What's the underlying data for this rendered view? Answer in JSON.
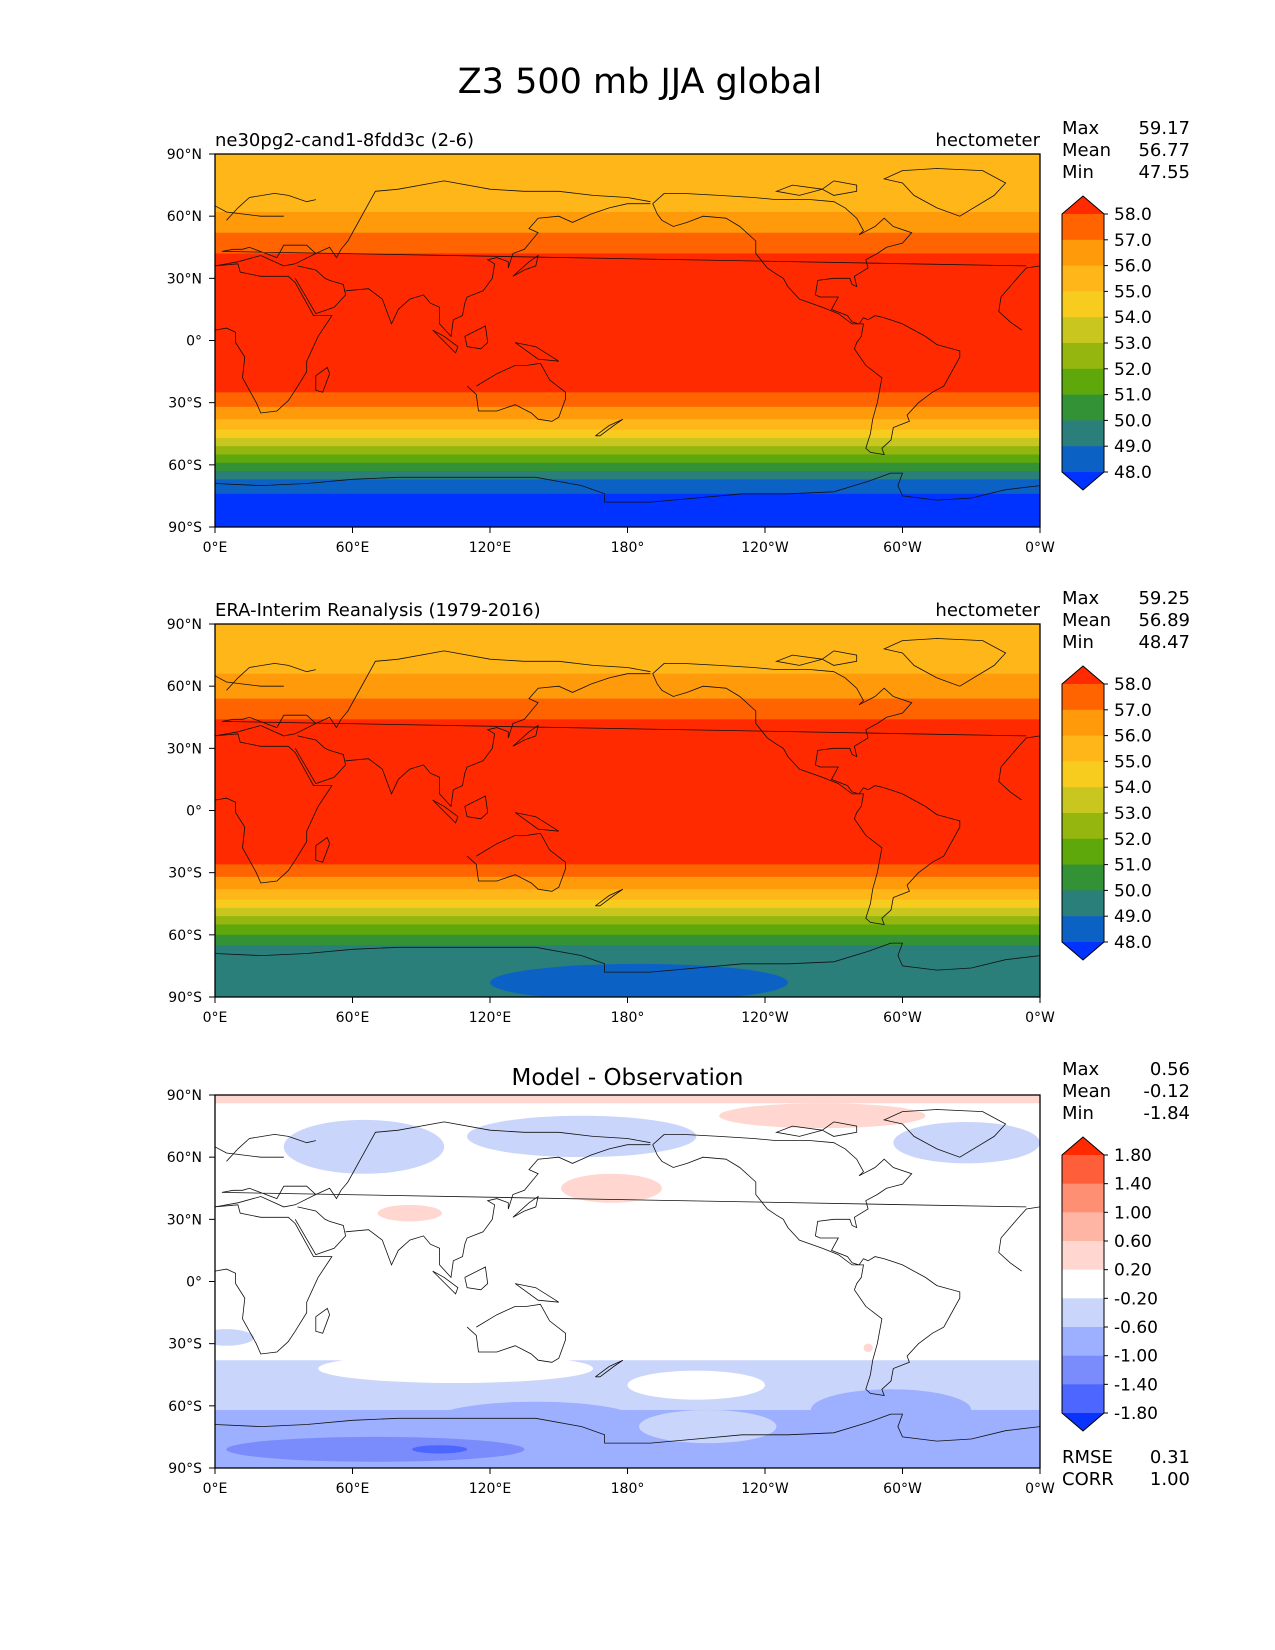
{
  "figure": {
    "title": "Z3 500 mb JJA global"
  },
  "axes": {
    "lat_ticks": [
      "90°N",
      "60°N",
      "30°N",
      "0°",
      "30°S",
      "60°S",
      "90°S"
    ],
    "lon_ticks": [
      "0°E",
      "60°E",
      "120°E",
      "180°",
      "120°W",
      "60°W",
      "0°W"
    ]
  },
  "chart_data": [
    {
      "type": "heatmap",
      "id": "test",
      "left_title": "ne30pg2-cand1-8fdd3c (2-6)",
      "center_title": "",
      "right_title": "hectometer",
      "stats": [
        {
          "label": "Max",
          "value": "59.17"
        },
        {
          "label": "Mean",
          "value": "56.77"
        },
        {
          "label": "Min",
          "value": "47.55"
        }
      ],
      "colorbar": {
        "levels": [
          "58.0",
          "57.0",
          "56.0",
          "55.0",
          "54.0",
          "53.0",
          "52.0",
          "51.0",
          "50.0",
          "49.0",
          "48.0"
        ],
        "colors": [
          "#ff2a00",
          "#ff6400",
          "#ff9a0a",
          "#ffb619",
          "#f8cc1f",
          "#c9c61f",
          "#94b60f",
          "#5ea80c",
          "#349236",
          "#2a7f7a",
          "#0c62c4",
          "#0033ff"
        ]
      },
      "xlim": [
        0,
        360
      ],
      "ylim": [
        -90,
        90
      ],
      "latitude_bands": [
        {
          "lat_min": 75,
          "lat_max": 90,
          "value": 55.5
        },
        {
          "lat_min": 62,
          "lat_max": 75,
          "value": 55.2
        },
        {
          "lat_min": 52,
          "lat_max": 62,
          "value": 56.5
        },
        {
          "lat_min": 42,
          "lat_max": 52,
          "value": 57.5
        },
        {
          "lat_min": -25,
          "lat_max": 42,
          "value": 58.4
        },
        {
          "lat_min": -32,
          "lat_max": -25,
          "value": 57.5
        },
        {
          "lat_min": -38,
          "lat_max": -32,
          "value": 56.5
        },
        {
          "lat_min": -43,
          "lat_max": -38,
          "value": 55.5
        },
        {
          "lat_min": -47,
          "lat_max": -43,
          "value": 54.5
        },
        {
          "lat_min": -51,
          "lat_max": -47,
          "value": 53.5
        },
        {
          "lat_min": -55,
          "lat_max": -51,
          "value": 52.5
        },
        {
          "lat_min": -59,
          "lat_max": -55,
          "value": 51.5
        },
        {
          "lat_min": -63,
          "lat_max": -59,
          "value": 50.5
        },
        {
          "lat_min": -67,
          "lat_max": -63,
          "value": 49.5
        },
        {
          "lat_min": -74,
          "lat_max": -67,
          "value": 48.5
        },
        {
          "lat_min": -90,
          "lat_max": -74,
          "value": 47.8
        }
      ],
      "anomalies": []
    },
    {
      "type": "heatmap",
      "id": "reference",
      "left_title": "ERA-Interim Reanalysis (1979-2016)",
      "center_title": "",
      "right_title": "hectometer",
      "stats": [
        {
          "label": "Max",
          "value": "59.25"
        },
        {
          "label": "Mean",
          "value": "56.89"
        },
        {
          "label": "Min",
          "value": "48.47"
        }
      ],
      "colorbar": {
        "levels": [
          "58.0",
          "57.0",
          "56.0",
          "55.0",
          "54.0",
          "53.0",
          "52.0",
          "51.0",
          "50.0",
          "49.0",
          "48.0"
        ],
        "colors": [
          "#ff2a00",
          "#ff6400",
          "#ff9a0a",
          "#ffb619",
          "#f8cc1f",
          "#c9c61f",
          "#94b60f",
          "#5ea80c",
          "#349236",
          "#2a7f7a",
          "#0c62c4",
          "#0033ff"
        ]
      },
      "xlim": [
        0,
        360
      ],
      "ylim": [
        -90,
        90
      ],
      "latitude_bands": [
        {
          "lat_min": 78,
          "lat_max": 90,
          "value": 55.5
        },
        {
          "lat_min": 66,
          "lat_max": 78,
          "value": 55.3
        },
        {
          "lat_min": 54,
          "lat_max": 66,
          "value": 56.5
        },
        {
          "lat_min": 44,
          "lat_max": 54,
          "value": 57.5
        },
        {
          "lat_min": -26,
          "lat_max": 44,
          "value": 58.4
        },
        {
          "lat_min": -32,
          "lat_max": -26,
          "value": 57.5
        },
        {
          "lat_min": -38,
          "lat_max": -32,
          "value": 56.5
        },
        {
          "lat_min": -43,
          "lat_max": -38,
          "value": 55.5
        },
        {
          "lat_min": -47,
          "lat_max": -43,
          "value": 54.5
        },
        {
          "lat_min": -51,
          "lat_max": -47,
          "value": 53.5
        },
        {
          "lat_min": -55,
          "lat_max": -51,
          "value": 52.5
        },
        {
          "lat_min": -60,
          "lat_max": -55,
          "value": 51.5
        },
        {
          "lat_min": -65,
          "lat_max": -60,
          "value": 50.5
        },
        {
          "lat_min": -90,
          "lat_max": -65,
          "value": 49.5
        }
      ],
      "anomalies": [
        {
          "lon": 185,
          "lat": -83,
          "lon_radius": 65,
          "lat_radius": 9,
          "value": 48.6
        }
      ]
    },
    {
      "type": "heatmap",
      "id": "difference",
      "left_title": "",
      "center_title": "Model - Observation",
      "right_title": "",
      "stats": [
        {
          "label": "Max",
          "value": "0.56"
        },
        {
          "label": "Mean",
          "value": "-0.12"
        },
        {
          "label": "Min",
          "value": "-1.84"
        }
      ],
      "bottom_stats": [
        {
          "label": "RMSE",
          "value": "0.31"
        },
        {
          "label": "CORR",
          "value": "1.00"
        }
      ],
      "colorbar": {
        "levels": [
          "1.80",
          "1.40",
          "1.00",
          "0.60",
          "0.20",
          "-0.20",
          "-0.60",
          "-1.00",
          "-1.40",
          "-1.80"
        ],
        "colors": [
          "#ff2a00",
          "#ff5e3a",
          "#ff8f73",
          "#ffb5a3",
          "#ffd7d0",
          "#ffffff",
          "#c9d5fa",
          "#9dafff",
          "#7a8cfb",
          "#4d66ff",
          "#0a33ff"
        ]
      },
      "xlim": [
        0,
        360
      ],
      "ylim": [
        -90,
        90
      ],
      "latitude_bands": [
        {
          "lat_min": 86,
          "lat_max": 90,
          "value": 0.3
        },
        {
          "lat_min": -38,
          "lat_max": 86,
          "value": 0.0
        },
        {
          "lat_min": -62,
          "lat_max": -38,
          "value": -0.3
        },
        {
          "lat_min": -73,
          "lat_max": -62,
          "value": -0.7
        },
        {
          "lat_min": -90,
          "lat_max": -73,
          "value": -0.7
        }
      ],
      "anomalies": [
        {
          "lon": 265,
          "lat": 80,
          "lon_radius": 45,
          "lat_radius": 6,
          "value": 0.3
        },
        {
          "lon": 65,
          "lat": 65,
          "lon_radius": 35,
          "lat_radius": 13,
          "value": -0.3
        },
        {
          "lon": 160,
          "lat": 70,
          "lon_radius": 50,
          "lat_radius": 10,
          "value": -0.3
        },
        {
          "lon": 328,
          "lat": 67,
          "lon_radius": 32,
          "lat_radius": 10,
          "value": -0.3
        },
        {
          "lon": 173,
          "lat": 45,
          "lon_radius": 22,
          "lat_radius": 7,
          "value": 0.3
        },
        {
          "lon": 85,
          "lat": 33,
          "lon_radius": 14,
          "lat_radius": 4,
          "value": 0.3
        },
        {
          "lon": 5,
          "lat": -27,
          "lon_radius": 12,
          "lat_radius": 4,
          "value": -0.3
        },
        {
          "lon": 285,
          "lat": -32,
          "lon_radius": 2,
          "lat_radius": 2,
          "value": 0.3
        },
        {
          "lon": 105,
          "lat": -42,
          "lon_radius": 60,
          "lat_radius": 7,
          "value": 0.0
        },
        {
          "lon": 210,
          "lat": -50,
          "lon_radius": 30,
          "lat_radius": 7,
          "value": 0.0
        },
        {
          "lon": 140,
          "lat": -67,
          "lon_radius": 45,
          "lat_radius": 9,
          "value": -0.7
        },
        {
          "lon": 295,
          "lat": -62,
          "lon_radius": 35,
          "lat_radius": 10,
          "value": -0.7
        },
        {
          "lon": 215,
          "lat": -70,
          "lon_radius": 30,
          "lat_radius": 8,
          "value": -0.3
        },
        {
          "lon": 70,
          "lat": -81,
          "lon_radius": 65,
          "lat_radius": 6,
          "value": -1.1
        },
        {
          "lon": 98,
          "lat": -81,
          "lon_radius": 12,
          "lat_radius": 2,
          "value": -1.5
        }
      ]
    }
  ]
}
